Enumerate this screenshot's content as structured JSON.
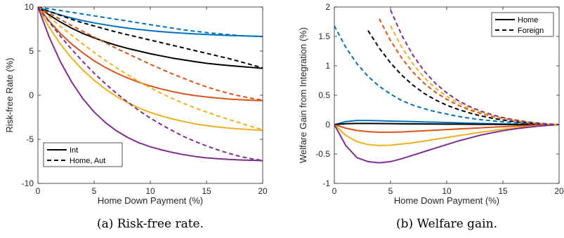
{
  "chart_data": [
    {
      "id": "a",
      "type": "line",
      "caption": "(a) Risk-free rate.",
      "xlabel": "Home Down Payment (%)",
      "ylabel": "Risk-free Rate (%)",
      "xlim": [
        0,
        20
      ],
      "ylim": [
        -10,
        10
      ],
      "xticks": [
        0,
        5,
        10,
        15,
        20
      ],
      "yticks": [
        -10,
        -5,
        0,
        5,
        10
      ],
      "grid": false,
      "legend": {
        "placement": "bottom-left",
        "entries": [
          {
            "label": "Int",
            "style": "solid"
          },
          {
            "label": "Home, Aut",
            "style": "dashed"
          }
        ]
      },
      "x": [
        0,
        1,
        2,
        3,
        4,
        5,
        6,
        7,
        8,
        9,
        10,
        11,
        12,
        13,
        14,
        15,
        16,
        17,
        18,
        19,
        20
      ],
      "series": [
        {
          "color": "#0072BD",
          "style": "solid",
          "values": [
            10,
            9.5,
            9.1,
            8.75,
            8.45,
            8.2,
            7.98,
            7.78,
            7.6,
            7.45,
            7.32,
            7.2,
            7.1,
            7.02,
            6.94,
            6.88,
            6.83,
            6.78,
            6.74,
            6.7,
            6.67
          ]
        },
        {
          "color": "#0072BD",
          "style": "dashed",
          "values": [
            10,
            9.8,
            9.6,
            9.4,
            9.2,
            9.0,
            8.8,
            8.6,
            8.4,
            8.2,
            8.0,
            7.8,
            7.6,
            7.4,
            7.25,
            7.1,
            6.98,
            6.86,
            6.76,
            6.7,
            6.65
          ]
        },
        {
          "color": "#000000",
          "style": "solid",
          "values": [
            10,
            9.1,
            8.3,
            7.6,
            7.0,
            6.5,
            6.05,
            5.65,
            5.3,
            5.0,
            4.7,
            4.45,
            4.2,
            4.0,
            3.8,
            3.62,
            3.48,
            3.36,
            3.25,
            3.15,
            3.05
          ]
        },
        {
          "color": "#000000",
          "style": "dashed",
          "values": [
            10,
            9.5,
            9.05,
            8.6,
            8.2,
            7.85,
            7.5,
            7.15,
            6.85,
            6.55,
            6.25,
            5.95,
            5.65,
            5.35,
            5.05,
            4.75,
            4.45,
            4.15,
            3.8,
            3.45,
            3.1
          ]
        },
        {
          "color": "#D95319",
          "style": "solid",
          "values": [
            10,
            8.4,
            7.0,
            5.8,
            4.8,
            3.9,
            3.15,
            2.5,
            1.95,
            1.45,
            1.05,
            0.7,
            0.4,
            0.15,
            -0.05,
            -0.2,
            -0.33,
            -0.44,
            -0.52,
            -0.58,
            -0.62
          ]
        },
        {
          "color": "#D95319",
          "style": "dashed",
          "values": [
            10,
            9.3,
            8.6,
            7.9,
            7.25,
            6.6,
            5.95,
            5.3,
            4.7,
            4.1,
            3.5,
            2.95,
            2.4,
            1.9,
            1.4,
            0.95,
            0.55,
            0.2,
            -0.1,
            -0.35,
            -0.55
          ]
        },
        {
          "color": "#EDB120",
          "style": "solid",
          "values": [
            10,
            7.7,
            5.8,
            4.2,
            2.85,
            1.7,
            0.7,
            -0.15,
            -0.85,
            -1.45,
            -1.95,
            -2.35,
            -2.7,
            -3.0,
            -3.25,
            -3.45,
            -3.6,
            -3.73,
            -3.83,
            -3.92,
            -3.98
          ]
        },
        {
          "color": "#EDB120",
          "style": "dashed",
          "values": [
            10,
            8.9,
            7.8,
            6.8,
            5.8,
            4.85,
            3.95,
            3.1,
            2.3,
            1.55,
            0.85,
            0.2,
            -0.4,
            -0.95,
            -1.45,
            -1.9,
            -2.35,
            -2.75,
            -3.15,
            -3.55,
            -3.9
          ]
        },
        {
          "color": "#7E2F8E",
          "style": "solid",
          "values": [
            10,
            6.6,
            3.8,
            1.5,
            -0.4,
            -1.9,
            -3.1,
            -4.05,
            -4.8,
            -5.4,
            -5.85,
            -6.2,
            -6.5,
            -6.75,
            -6.95,
            -7.1,
            -7.2,
            -7.28,
            -7.34,
            -7.38,
            -7.42
          ]
        },
        {
          "color": "#7E2F8E",
          "style": "dashed",
          "values": [
            10,
            8.3,
            6.7,
            5.2,
            3.8,
            2.5,
            1.3,
            0.2,
            -0.8,
            -1.75,
            -2.6,
            -3.35,
            -4.05,
            -4.7,
            -5.25,
            -5.75,
            -6.2,
            -6.6,
            -6.95,
            -7.2,
            -7.4
          ]
        }
      ]
    },
    {
      "id": "b",
      "type": "line",
      "caption": "(b) Welfare gain.",
      "xlabel": "Home Down Payment (%)",
      "ylabel": "Welfare Gain from Integration (%)",
      "xlim": [
        0,
        20
      ],
      "ylim": [
        -1,
        2
      ],
      "xticks": [
        0,
        5,
        10,
        15,
        20
      ],
      "yticks": [
        -1,
        -0.5,
        0,
        0.5,
        1,
        1.5,
        2
      ],
      "ytick_labels": [
        "-1",
        "-0.5",
        "0",
        "0.5",
        "1",
        "1.5",
        "2"
      ],
      "grid": false,
      "legend": {
        "placement": "top-right",
        "entries": [
          {
            "label": "Home",
            "style": "solid"
          },
          {
            "label": "Foreign",
            "style": "dashed"
          }
        ]
      },
      "x": [
        0,
        1,
        2,
        3,
        4,
        5,
        6,
        7,
        8,
        9,
        10,
        11,
        12,
        13,
        14,
        15,
        16,
        17,
        18,
        19,
        20
      ],
      "series": [
        {
          "color": "#0072BD",
          "style": "solid",
          "values": [
            0,
            0.05,
            0.07,
            0.07,
            0.065,
            0.06,
            0.055,
            0.05,
            0.045,
            0.04,
            0.035,
            0.03,
            0.025,
            0.02,
            0.015,
            0.01,
            0.007,
            0.004,
            0.002,
            0.001,
            0
          ]
        },
        {
          "color": "#000000",
          "style": "solid",
          "values": [
            0,
            0.015,
            0.02,
            0.02,
            0.018,
            0.016,
            0.014,
            0.012,
            0.01,
            0.009,
            0.008,
            0.007,
            0.006,
            0.005,
            0.004,
            0.003,
            0.002,
            0.001,
            0.001,
            0,
            0
          ]
        },
        {
          "color": "#D95319",
          "style": "solid",
          "values": [
            0,
            -0.06,
            -0.1,
            -0.12,
            -0.13,
            -0.13,
            -0.125,
            -0.115,
            -0.105,
            -0.095,
            -0.085,
            -0.075,
            -0.065,
            -0.055,
            -0.045,
            -0.035,
            -0.027,
            -0.019,
            -0.012,
            -0.006,
            0
          ]
        },
        {
          "color": "#EDB120",
          "style": "solid",
          "values": [
            0,
            -0.18,
            -0.29,
            -0.34,
            -0.355,
            -0.35,
            -0.33,
            -0.31,
            -0.28,
            -0.25,
            -0.22,
            -0.19,
            -0.16,
            -0.13,
            -0.105,
            -0.08,
            -0.06,
            -0.04,
            -0.025,
            -0.012,
            0
          ]
        },
        {
          "color": "#7E2F8E",
          "style": "solid",
          "values": [
            0,
            -0.35,
            -0.56,
            -0.63,
            -0.65,
            -0.63,
            -0.58,
            -0.52,
            -0.46,
            -0.4,
            -0.34,
            -0.28,
            -0.23,
            -0.18,
            -0.14,
            -0.105,
            -0.075,
            -0.05,
            -0.03,
            -0.014,
            0
          ]
        },
        {
          "color": "#0072BD",
          "style": "dashed",
          "values": [
            1.68,
            1.32,
            1.04,
            0.82,
            0.65,
            0.52,
            0.41,
            0.33,
            0.27,
            0.22,
            0.18,
            0.14,
            0.11,
            0.085,
            0.065,
            0.048,
            0.034,
            0.022,
            0.012,
            0.005,
            0
          ]
        },
        {
          "color": "#000000",
          "style": "dashed",
          "values": [
            null,
            null,
            null,
            1.6,
            1.3,
            1.05,
            0.84,
            0.67,
            0.53,
            0.42,
            0.33,
            0.26,
            0.2,
            0.15,
            0.11,
            0.078,
            0.052,
            0.032,
            0.017,
            0.007,
            0
          ]
        },
        {
          "color": "#D95319",
          "style": "dashed",
          "values": [
            null,
            null,
            null,
            null,
            1.8,
            1.43,
            1.13,
            0.89,
            0.7,
            0.55,
            0.43,
            0.33,
            0.25,
            0.19,
            0.14,
            0.1,
            0.068,
            0.043,
            0.023,
            0.009,
            0
          ]
        },
        {
          "color": "#EDB120",
          "style": "dashed",
          "values": [
            null,
            null,
            null,
            null,
            null,
            1.68,
            1.32,
            1.03,
            0.8,
            0.62,
            0.48,
            0.37,
            0.28,
            0.21,
            0.155,
            0.11,
            0.075,
            0.047,
            0.026,
            0.01,
            0
          ]
        },
        {
          "color": "#7E2F8E",
          "style": "dashed",
          "values": [
            null,
            null,
            null,
            null,
            null,
            1.95,
            1.52,
            1.18,
            0.91,
            0.7,
            0.54,
            0.41,
            0.31,
            0.23,
            0.17,
            0.12,
            0.082,
            0.051,
            0.028,
            0.011,
            0
          ]
        }
      ]
    }
  ]
}
